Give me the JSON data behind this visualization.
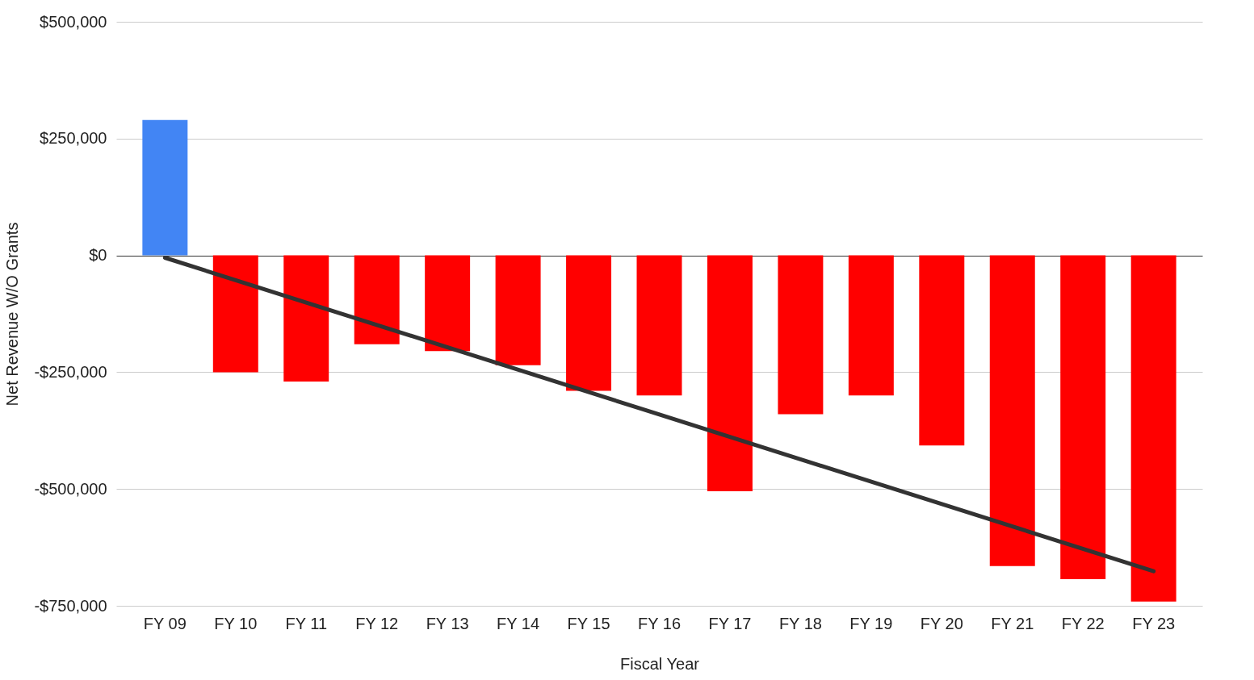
{
  "chart_data": {
    "type": "bar",
    "xlabel": "Fiscal Year",
    "ylabel": "Net Revenue W/O Grants",
    "categories": [
      "FY 09",
      "FY 10",
      "FY 11",
      "FY 12",
      "FY 13",
      "FY 14",
      "FY 15",
      "FY 16",
      "FY 17",
      "FY 18",
      "FY 19",
      "FY 20",
      "FY 21",
      "FY 22",
      "FY 23"
    ],
    "series": [
      {
        "values": [
          290000,
          -250000,
          -270000,
          -190000,
          -205000,
          -235000,
          -290000,
          -300000,
          -505000,
          -340000,
          -300000,
          -407000,
          -665000,
          -693000,
          -741000
        ],
        "colors": [
          "#4285f4",
          "#ff0000",
          "#ff0000",
          "#ff0000",
          "#ff0000",
          "#ff0000",
          "#ff0000",
          "#ff0000",
          "#ff0000",
          "#ff0000",
          "#ff0000",
          "#ff0000",
          "#ff0000",
          "#ff0000",
          "#ff0000"
        ]
      },
      {
        "type": "line",
        "x": [
          "FY 09",
          "FY 23"
        ],
        "values": [
          -5000,
          -676000
        ],
        "color": "#333333"
      }
    ],
    "ylim": [
      -750000,
      500000
    ],
    "yticks": [
      {
        "value": 500000,
        "label": "$500,000"
      },
      {
        "value": 250000,
        "label": "$250,000"
      },
      {
        "value": 0,
        "label": "$0"
      },
      {
        "value": -250000,
        "label": "-$250,000"
      },
      {
        "value": -500000,
        "label": "-$500,000"
      },
      {
        "value": -750000,
        "label": "-$750,000"
      }
    ],
    "grid": "y"
  }
}
